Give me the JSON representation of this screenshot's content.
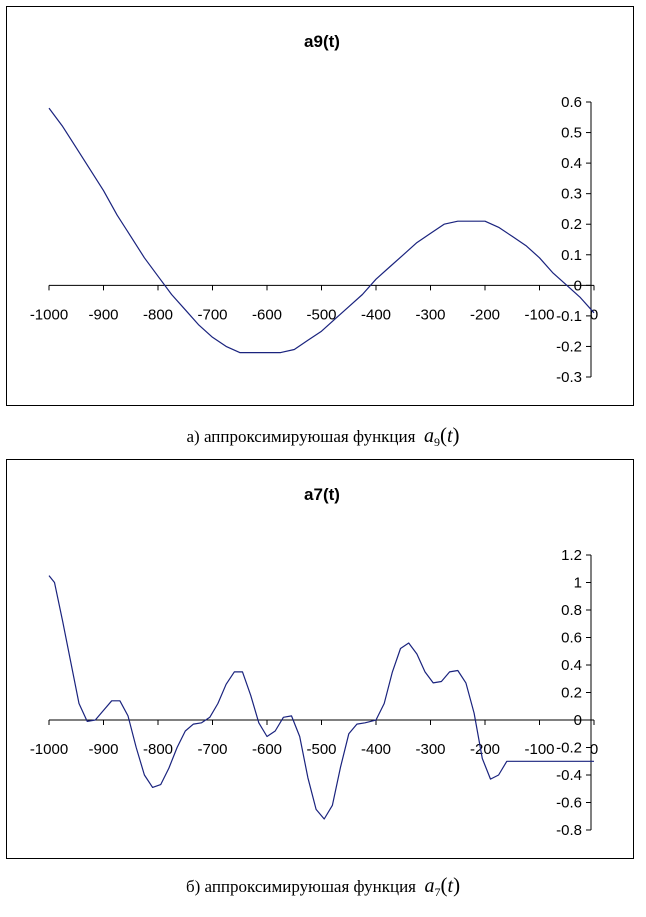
{
  "chart_data": [
    {
      "type": "line",
      "title": "a9(t)",
      "xlim": [
        -1000,
        0
      ],
      "ylim": [
        -0.3,
        0.6
      ],
      "x_ticks": [
        "-1000",
        "-900",
        "-800",
        "-700",
        "-600",
        "-500",
        "-400",
        "-300",
        "-200",
        "-100",
        "0"
      ],
      "y_ticks": [
        "0.6",
        "0.5",
        "0.4",
        "0.3",
        "0.2",
        "0.1",
        "0",
        "-0.1",
        "-0.2",
        "-0.3"
      ],
      "grid": false,
      "line_color": "#1a237e",
      "series": [
        {
          "x": [
            -1000,
            -975,
            -950,
            -925,
            -900,
            -875,
            -850,
            -825,
            -800,
            -775,
            -750,
            -725,
            -700,
            -675,
            -650,
            -625,
            -600,
            -575,
            -550,
            -525,
            -500,
            -475,
            -450,
            -425,
            -400,
            -375,
            -350,
            -325,
            -300,
            -275,
            -250,
            -225,
            -200,
            -175,
            -150,
            -125,
            -100,
            -75,
            -50,
            -25,
            0
          ],
          "y": [
            0.58,
            0.52,
            0.45,
            0.38,
            0.31,
            0.23,
            0.16,
            0.09,
            0.03,
            -0.03,
            -0.08,
            -0.13,
            -0.17,
            -0.2,
            -0.22,
            -0.22,
            -0.22,
            -0.22,
            -0.21,
            -0.18,
            -0.15,
            -0.11,
            -0.07,
            -0.03,
            0.02,
            0.06,
            0.1,
            0.14,
            0.17,
            0.2,
            0.21,
            0.21,
            0.21,
            0.19,
            0.16,
            0.13,
            0.09,
            0.04,
            0.0,
            -0.04,
            -0.09
          ]
        }
      ]
    },
    {
      "type": "line",
      "title": "a7(t)",
      "xlim": [
        -1000,
        0
      ],
      "ylim": [
        -0.8,
        1.2
      ],
      "x_ticks": [
        "-1000",
        "-900",
        "-800",
        "-700",
        "-600",
        "-500",
        "-400",
        "-300",
        "-200",
        "-100",
        "0"
      ],
      "y_ticks": [
        "1.2",
        "1",
        "0.8",
        "0.6",
        "0.4",
        "0.2",
        "0",
        "-0.2",
        "-0.4",
        "-0.6",
        "-0.8"
      ],
      "grid": false,
      "line_color": "#1a237e",
      "series": [
        {
          "x": [
            -1000,
            -990,
            -975,
            -960,
            -945,
            -930,
            -915,
            -900,
            -885,
            -870,
            -855,
            -840,
            -825,
            -810,
            -795,
            -780,
            -765,
            -750,
            -735,
            -720,
            -705,
            -690,
            -675,
            -660,
            -645,
            -630,
            -615,
            -600,
            -585,
            -570,
            -555,
            -540,
            -525,
            -510,
            -495,
            -480,
            -465,
            -450,
            -435,
            -420,
            -410,
            -400,
            -385,
            -370,
            -355,
            -340,
            -325,
            -310,
            -295,
            -280,
            -265,
            -250,
            -235,
            -220,
            -205,
            -190,
            -175,
            -160,
            -145,
            -130,
            -115,
            -100,
            -85,
            -70,
            -55,
            -40,
            -25,
            -10,
            0
          ],
          "y": [
            1.05,
            1.0,
            0.72,
            0.42,
            0.12,
            -0.01,
            0.0,
            0.07,
            0.14,
            0.14,
            0.03,
            -0.2,
            -0.4,
            -0.49,
            -0.47,
            -0.35,
            -0.2,
            -0.08,
            -0.03,
            -0.02,
            0.02,
            0.12,
            0.26,
            0.35,
            0.35,
            0.18,
            -0.02,
            -0.12,
            -0.08,
            0.02,
            0.03,
            -0.12,
            -0.42,
            -0.65,
            -0.72,
            -0.62,
            -0.34,
            -0.1,
            -0.03,
            -0.02,
            -0.01,
            0.0,
            0.12,
            0.35,
            0.52,
            0.56,
            0.48,
            0.35,
            0.27,
            0.28,
            0.35,
            0.36,
            0.27,
            0.05,
            -0.28,
            -0.43,
            -0.4,
            -0.3,
            -0.3,
            -0.3,
            -0.3,
            -0.3,
            -0.3,
            -0.3,
            -0.3,
            -0.3,
            -0.3,
            -0.3,
            -0.3
          ]
        }
      ]
    }
  ],
  "captions": {
    "a": {
      "prefix": "а) аппроксимируюшая функция",
      "var": "a",
      "sub": "9",
      "open": "(",
      "arg": "t",
      "close": ")"
    },
    "b": {
      "prefix": "б) аппроксимируюшая функция",
      "var": "a",
      "sub": "7",
      "open": "(",
      "arg": "t",
      "close": ")"
    }
  }
}
